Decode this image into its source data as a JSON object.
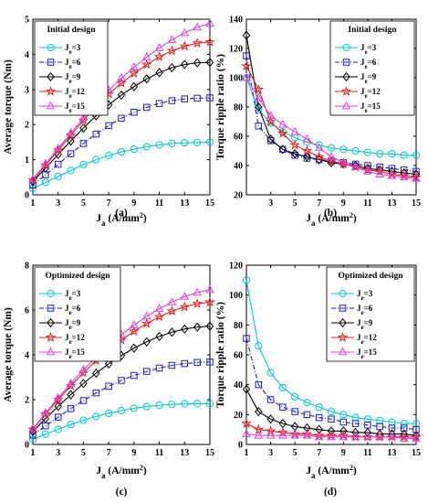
{
  "chart_data": [
    {
      "id": "a",
      "type": "line",
      "panel_label": "(a)",
      "xlabel": "J_a (A/mm^2)",
      "ylabel": "Average torque (Nm)",
      "xlim": [
        1,
        15
      ],
      "ylim": [
        0,
        5
      ],
      "xticks": [
        1,
        3,
        5,
        7,
        9,
        11,
        13,
        15
      ],
      "yticks": [
        0,
        1,
        2,
        3,
        4,
        5
      ],
      "legend_title": "Initial design",
      "legend_position": "top-left",
      "x": [
        1,
        2,
        3,
        4,
        5,
        6,
        7,
        8,
        9,
        10,
        11,
        12,
        13,
        14,
        15
      ],
      "series": [
        {
          "name": "J_e=3",
          "marker": "circle",
          "color": "#00c8d2",
          "dash": "solid",
          "values": [
            0.18,
            0.35,
            0.52,
            0.69,
            0.86,
            1.0,
            1.12,
            1.22,
            1.3,
            1.37,
            1.42,
            1.46,
            1.48,
            1.49,
            1.5
          ]
        },
        {
          "name": "J_e=6",
          "marker": "square",
          "color": "#1a1adc",
          "dash": "dashdot",
          "values": [
            0.28,
            0.57,
            0.87,
            1.17,
            1.46,
            1.73,
            1.97,
            2.18,
            2.35,
            2.49,
            2.6,
            2.68,
            2.73,
            2.75,
            2.76
          ]
        },
        {
          "name": "J_e=9",
          "marker": "diamond",
          "color": "#000000",
          "dash": "solid",
          "values": [
            0.38,
            0.76,
            1.15,
            1.53,
            1.9,
            2.25,
            2.56,
            2.84,
            3.08,
            3.3,
            3.48,
            3.62,
            3.71,
            3.76,
            3.77
          ]
        },
        {
          "name": "J_e=12",
          "marker": "star",
          "color": "#e0201a",
          "dash": "solid",
          "values": [
            0.42,
            0.84,
            1.27,
            1.7,
            2.12,
            2.51,
            2.87,
            3.18,
            3.46,
            3.71,
            3.93,
            4.1,
            4.23,
            4.32,
            4.35
          ]
        },
        {
          "name": "J_e=15",
          "marker": "triangle",
          "color": "#e040e0",
          "dash": "solid",
          "values": [
            0.44,
            0.88,
            1.32,
            1.76,
            2.19,
            2.6,
            2.98,
            3.32,
            3.63,
            3.92,
            4.18,
            4.41,
            4.61,
            4.77,
            4.88
          ]
        }
      ]
    },
    {
      "id": "b",
      "type": "line",
      "panel_label": "(b)",
      "xlabel": "J_a (A/mm^2)",
      "ylabel": "Torque ripple ratio (%)",
      "xlim": [
        1,
        15
      ],
      "ylim": [
        20,
        140
      ],
      "xticks": [
        3,
        5,
        7,
        9,
        11,
        13,
        15
      ],
      "yticks": [
        20,
        40,
        60,
        80,
        100,
        120,
        140
      ],
      "legend_title": "Initial design",
      "legend_position": "top-right",
      "x": [
        1,
        2,
        3,
        4,
        5,
        6,
        7,
        8,
        9,
        10,
        11,
        12,
        13,
        14,
        15
      ],
      "series": [
        {
          "name": "J_e=3",
          "marker": "circle",
          "color": "#00c8d2",
          "dash": "solid",
          "values": [
            100,
            78,
            69,
            63,
            59,
            56,
            54,
            52,
            51,
            50,
            49,
            48,
            48,
            47,
            47
          ]
        },
        {
          "name": "J_e=6",
          "marker": "square",
          "color": "#1a1adc",
          "dash": "dashdot",
          "values": [
            115,
            67,
            57,
            51,
            47,
            45,
            44,
            43,
            42,
            41,
            40,
            39,
            38,
            37,
            36
          ]
        },
        {
          "name": "J_e=9",
          "marker": "diamond",
          "color": "#000000",
          "dash": "solid",
          "values": [
            129,
            80,
            58,
            51,
            48,
            46,
            44,
            42,
            41,
            40,
            38,
            37,
            36,
            35,
            34
          ]
        },
        {
          "name": "J_e=12",
          "marker": "star",
          "color": "#e0201a",
          "dash": "solid",
          "values": [
            108,
            92,
            70,
            62,
            54,
            50,
            46,
            43,
            41,
            39,
            37,
            36,
            34,
            33,
            32
          ]
        },
        {
          "name": "J_e=15",
          "marker": "triangle",
          "color": "#e040e0",
          "dash": "solid",
          "values": [
            100,
            86,
            74,
            68,
            63,
            58,
            52,
            46,
            42,
            39,
            36,
            34,
            33,
            32,
            31
          ]
        }
      ]
    },
    {
      "id": "c",
      "type": "line",
      "panel_label": "(c)",
      "xlabel": "J_a (A/mm^2)",
      "ylabel": "Average torque (Nm)",
      "xlim": [
        1,
        15
      ],
      "ylim": [
        0,
        8
      ],
      "xticks": [
        1,
        3,
        5,
        7,
        9,
        11,
        13,
        15
      ],
      "yticks": [
        0,
        2,
        4,
        6,
        8
      ],
      "legend_title": "Optimized design",
      "legend_position": "top-left",
      "x": [
        1,
        2,
        3,
        4,
        5,
        6,
        7,
        8,
        9,
        10,
        11,
        12,
        13,
        14,
        15
      ],
      "series": [
        {
          "name": "J_e=3",
          "marker": "circle",
          "color": "#00c8d2",
          "dash": "solid",
          "values": [
            0.23,
            0.46,
            0.68,
            0.89,
            1.08,
            1.25,
            1.39,
            1.51,
            1.61,
            1.69,
            1.75,
            1.79,
            1.81,
            1.82,
            1.82
          ]
        },
        {
          "name": "J_e=6",
          "marker": "square",
          "color": "#1a1adc",
          "dash": "dashdot",
          "values": [
            0.42,
            0.83,
            1.22,
            1.6,
            1.96,
            2.3,
            2.6,
            2.86,
            3.08,
            3.26,
            3.41,
            3.53,
            3.61,
            3.66,
            3.68
          ]
        },
        {
          "name": "J_e=9",
          "marker": "diamond",
          "color": "#000000",
          "dash": "solid",
          "values": [
            0.58,
            1.15,
            1.7,
            2.22,
            2.72,
            3.18,
            3.6,
            3.97,
            4.3,
            4.58,
            4.82,
            5.01,
            5.15,
            5.24,
            5.28
          ]
        },
        {
          "name": "J_e=12",
          "marker": "star",
          "color": "#e0201a",
          "dash": "solid",
          "values": [
            0.68,
            1.35,
            2.0,
            2.62,
            3.2,
            3.74,
            4.22,
            4.66,
            5.05,
            5.4,
            5.7,
            5.95,
            6.14,
            6.28,
            6.35
          ]
        },
        {
          "name": "J_e=15",
          "marker": "triangle",
          "color": "#e040e0",
          "dash": "solid",
          "values": [
            0.7,
            1.4,
            2.07,
            2.72,
            3.33,
            3.9,
            4.42,
            4.9,
            5.33,
            5.72,
            6.06,
            6.35,
            6.6,
            6.78,
            6.9
          ]
        }
      ]
    },
    {
      "id": "d",
      "type": "line",
      "panel_label": "(d)",
      "xlabel": "J_a (A/mm^2)",
      "ylabel": "Torque ripple ratio (%)",
      "xlim": [
        1,
        15
      ],
      "ylim": [
        0,
        120
      ],
      "xticks": [
        1,
        3,
        5,
        7,
        9,
        11,
        13,
        15
      ],
      "yticks": [
        0,
        20,
        40,
        60,
        80,
        100,
        120
      ],
      "legend_title": "Optimized design",
      "legend_position": "top-right",
      "x": [
        1,
        2,
        3,
        4,
        5,
        6,
        7,
        8,
        9,
        10,
        11,
        12,
        13,
        14,
        15
      ],
      "series": [
        {
          "name": "J_e=3",
          "marker": "circle",
          "color": "#00c8d2",
          "dash": "solid",
          "values": [
            110,
            66,
            48,
            38,
            32,
            28,
            25,
            22,
            20,
            18,
            17,
            16,
            15,
            14,
            14
          ]
        },
        {
          "name": "J_e=6",
          "marker": "square",
          "color": "#1a1adc",
          "dash": "dashdot",
          "values": [
            71,
            40,
            30,
            25,
            22,
            20,
            18,
            17,
            15,
            14,
            13,
            12,
            11,
            11,
            10
          ]
        },
        {
          "name": "J_e=9",
          "marker": "diamond",
          "color": "#000000",
          "dash": "solid",
          "values": [
            37,
            22,
            17,
            14,
            12,
            11,
            10,
            9,
            9,
            8,
            8,
            7,
            7,
            7,
            6
          ]
        },
        {
          "name": "J_e=12",
          "marker": "star",
          "color": "#e0201a",
          "dash": "solid",
          "values": [
            14,
            10,
            9,
            8,
            7,
            7,
            6,
            6,
            6,
            5,
            5,
            5,
            5,
            5,
            5
          ]
        },
        {
          "name": "J_e=15",
          "marker": "triangle",
          "color": "#e040e0",
          "dash": "solid",
          "values": [
            7,
            6,
            6,
            6,
            6,
            6,
            5,
            5,
            5,
            5,
            5,
            5,
            5,
            4,
            4
          ]
        }
      ]
    }
  ]
}
